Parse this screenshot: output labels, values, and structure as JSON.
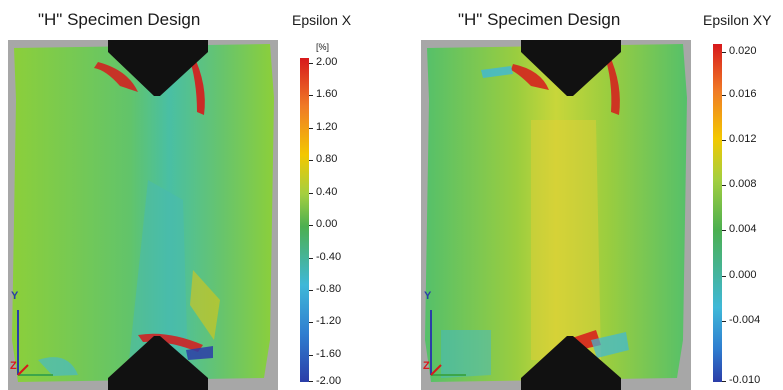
{
  "panels": [
    {
      "title": "\"H\" Specimen Design",
      "legend_title": "Epsilon X",
      "legend_unit": "[%]",
      "ticks": [
        "2.00",
        "1.60",
        "1.20",
        "0.80",
        "0.40",
        "0.00",
        "-0.40",
        "-0.80",
        "-1.20",
        "-1.60",
        "-2.00"
      ],
      "axis_y": "Y",
      "axis_z": "Z",
      "colors": {
        "hot": "#d7191c",
        "warm": "#f3c800",
        "mid": "#4caf50",
        "cool": "#3fb8d8",
        "cold": "#2b3da8"
      }
    },
    {
      "title": "\"H\" Specimen Design",
      "legend_title": "Epsilon XY",
      "legend_unit": "",
      "ticks": [
        "0.020",
        "0.016",
        "0.012",
        "0.008",
        "0.004",
        "0.000",
        "-0.004",
        "-0.010"
      ],
      "axis_y": "Y",
      "axis_z": "Z",
      "colors": {
        "hot": "#d7191c",
        "warm": "#f3c800",
        "mid": "#4caf50",
        "cool": "#3fb8d8",
        "cold": "#2b3da8"
      }
    }
  ]
}
